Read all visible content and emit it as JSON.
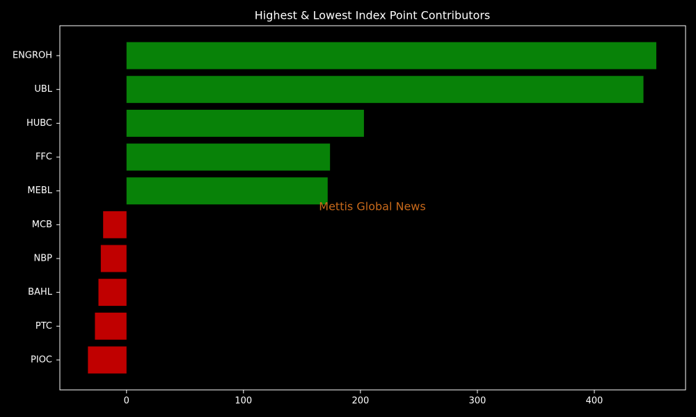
{
  "chart_data": {
    "type": "barh",
    "title": "Highest & Lowest Index Point Contributors",
    "annotation": "Mettis Global News",
    "categories": [
      "ENGROH",
      "UBL",
      "HUBC",
      "FFC",
      "MEBL",
      "MCB",
      "NBP",
      "BAHL",
      "PTC",
      "PIOC"
    ],
    "values": [
      453,
      442,
      203,
      174,
      172,
      -20,
      -22,
      -24,
      -27,
      -33
    ],
    "colors": [
      "#088208",
      "#088208",
      "#088208",
      "#088208",
      "#088208",
      "#c00000",
      "#c00000",
      "#c00000",
      "#c00000",
      "#c00000"
    ],
    "xlim": [
      -57,
      478
    ],
    "xticks": [
      0,
      100,
      200,
      300,
      400
    ],
    "grid": false
  }
}
